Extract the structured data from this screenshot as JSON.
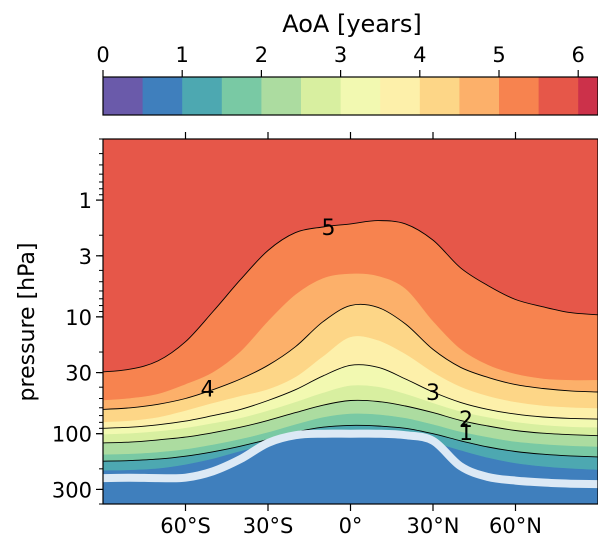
{
  "chart_data": {
    "type": "heatmap",
    "title": "",
    "colorbar": {
      "label": "AoA [years]",
      "min": 0,
      "max": 6.25,
      "levels": [
        0,
        0.5,
        1,
        1.5,
        2,
        2.5,
        3,
        3.5,
        4,
        4.5,
        5,
        5.5,
        6,
        6.25
      ],
      "ticks": [
        0,
        1,
        2,
        3,
        4,
        5,
        6
      ],
      "tick_labels": [
        "0",
        "1",
        "2",
        "3",
        "4",
        "5",
        "6"
      ],
      "colors": [
        "#6a5aaa",
        "#3f7fbd",
        "#4da8b1",
        "#79c9a4",
        "#acdca0",
        "#d8efa0",
        "#f2f9b1",
        "#fdf0aa",
        "#fdd687",
        "#fcb06a",
        "#f7834f",
        "#e65749",
        "#cc314a",
        "#a20a45"
      ]
    },
    "x": {
      "label": "",
      "range": [
        -90,
        90
      ],
      "ticks": [
        -60,
        -30,
        0,
        30,
        60
      ],
      "tick_labels": [
        "60°S",
        "30°S",
        "0°",
        "30°N",
        "60°N"
      ]
    },
    "y": {
      "label": "pressure [hPa]",
      "scale": "log",
      "inverted": true,
      "range": [
        400,
        0.3
      ],
      "ticks": [
        1,
        3,
        10,
        30,
        100,
        300
      ],
      "tick_labels": [
        "1",
        "3",
        "10",
        "30",
        "100",
        "300"
      ]
    },
    "bands": [
      {
        "max_age": 5.5,
        "color": "#e65749",
        "p": [
          0.3,
          0.3,
          0.3,
          0.3,
          0.3,
          0.3,
          0.3,
          0.3,
          0.3,
          0.3,
          0.3,
          0.3,
          0.3,
          0.3,
          0.3,
          0.3,
          0.3,
          0.3,
          0.3
        ]
      },
      {
        "max_age": 5.0,
        "color": "#f7834f",
        "p": [
          29.6,
          28,
          23.8,
          16.3,
          9.0,
          4.8,
          2.7,
          1.9,
          1.7,
          1.6,
          1.5,
          1.6,
          2.2,
          3.8,
          5.4,
          7.1,
          8.2,
          9.2,
          9.6
        ]
      },
      {
        "max_age": 4.5,
        "color": "#fcb06a",
        "p": [
          52,
          50,
          46,
          38,
          30,
          20,
          11,
          6.5,
          4.7,
          4.3,
          4.5,
          5.8,
          11,
          19,
          26,
          31,
          34,
          35,
          35
        ]
      },
      {
        "max_age": 4.0,
        "color": "#fdd687",
        "p": [
          62,
          60,
          56,
          50,
          42,
          34,
          26,
          18,
          11,
          8.0,
          8.3,
          11.5,
          19,
          27,
          33,
          38,
          41,
          43,
          44
        ]
      },
      {
        "max_age": 3.5,
        "color": "#fdf0aa",
        "p": [
          80,
          78,
          73,
          64,
          55,
          48,
          42,
          33,
          22,
          15,
          16,
          21,
          30,
          40,
          48,
          54,
          58,
          60,
          61
        ]
      },
      {
        "max_age": 3.0,
        "color": "#f2f9b1",
        "p": [
          90,
          88,
          84,
          78,
          70,
          62,
          52,
          42,
          32,
          26,
          27,
          34,
          44,
          54,
          62,
          68,
          72,
          74,
          75
        ]
      },
      {
        "max_age": 2.5,
        "color": "#d8efa0",
        "p": [
          102,
          100,
          96,
          90,
          82,
          74,
          64,
          54,
          45,
          39,
          40,
          46,
          55,
          65,
          73,
          80,
          85,
          88,
          89
        ]
      },
      {
        "max_age": 2.0,
        "color": "#acdca0",
        "p": [
          120,
          118,
          113,
          107,
          98,
          88,
          77,
          66,
          57,
          52,
          53,
          58,
          66,
          77,
          86,
          94,
          99,
          102,
          104
        ]
      },
      {
        "max_age": 1.5,
        "color": "#79c9a4",
        "p": [
          152,
          150,
          145,
          137,
          125,
          112,
          98,
          84,
          73,
          68,
          69,
          74,
          84,
          97,
          108,
          118,
          124,
          128,
          130
        ]
      },
      {
        "max_age": 1.0,
        "color": "#4da8b1",
        "p": [
          172,
          170,
          165,
          156,
          143,
          128,
          112,
          97,
          88,
          85,
          86,
          90,
          100,
          115,
          130,
          142,
          150,
          155,
          158
        ]
      },
      {
        "max_age": 0.5,
        "color": "#3f7fbd",
        "p": [
          208,
          206,
          200,
          185,
          165,
          142,
          125,
          112,
          106,
          104,
          105,
          110,
          120,
          140,
          162,
          180,
          192,
          200,
          205
        ]
      }
    ],
    "contours": [
      {
        "level": 5,
        "label": "5",
        "label_at": [
          -8,
          1.7
        ],
        "p_ref": 1
      },
      {
        "level": 4,
        "label": "4",
        "label_at": [
          -52,
          41
        ],
        "p_ref": 3
      },
      {
        "level": 3,
        "label": "3",
        "label_at": [
          30,
          44
        ],
        "p_ref": 5
      },
      {
        "level": 2,
        "label": "2",
        "label_at": [
          42,
          75
        ],
        "p_ref": 7
      },
      {
        "level": 1,
        "label": "1",
        "label_at": [
          42,
          97
        ],
        "p_ref": 9
      }
    ],
    "tropopause": {
      "color": "#dce9f5",
      "p": [
        240,
        238,
        240,
        238,
        210,
        165,
        120,
        103,
        100,
        100,
        100,
        103,
        115,
        190,
        235,
        252,
        262,
        268,
        270
      ]
    },
    "lat_grid": [
      -90,
      -80,
      -70,
      -60,
      -50,
      -40,
      -30,
      -20,
      -10,
      0,
      10,
      20,
      30,
      40,
      50,
      60,
      70,
      80,
      90
    ]
  }
}
